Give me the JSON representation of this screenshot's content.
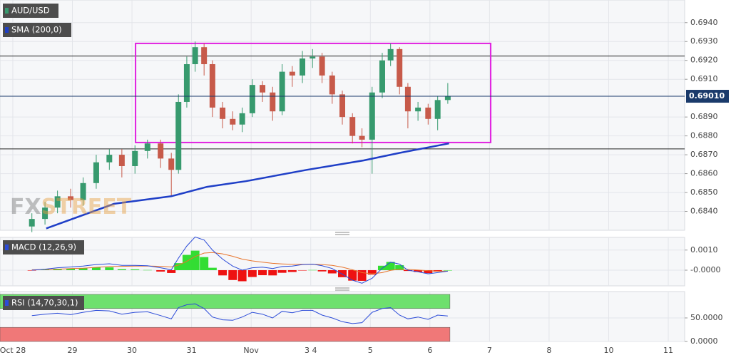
{
  "chart_data": [
    {
      "type": "candlestick",
      "title": "AUD/USD",
      "watermark": [
        "FX",
        "STREET"
      ],
      "x": [
        0.32,
        0.54,
        0.75,
        0.97,
        1.18,
        1.4,
        1.62,
        1.83,
        2.05,
        2.26,
        2.48,
        2.66,
        2.78,
        2.92,
        3.06,
        3.21,
        3.35,
        3.52,
        3.69,
        3.85,
        4.02,
        4.19,
        4.36,
        4.52,
        4.69,
        4.86,
        5.03,
        5.19,
        5.36,
        5.53,
        5.7,
        5.86,
        6.03,
        6.2,
        6.34,
        6.49,
        6.63,
        6.8,
        6.97,
        7.13,
        7.3
      ],
      "open": [
        0.6832,
        0.6836,
        0.6842,
        0.6848,
        0.6846,
        0.6855,
        0.6866,
        0.687,
        0.6864,
        0.6872,
        0.6876,
        0.6868,
        0.6862,
        0.6898,
        0.6918,
        0.6927,
        0.6918,
        0.6895,
        0.6889,
        0.6886,
        0.6892,
        0.6907,
        0.6903,
        0.6893,
        0.6914,
        0.6912,
        0.6921,
        0.6922,
        0.6912,
        0.6902,
        0.689,
        0.688,
        0.6878,
        0.6903,
        0.692,
        0.6926,
        0.6906,
        0.6893,
        0.6895,
        0.6889,
        0.6899
      ],
      "high": [
        0.6839,
        0.6845,
        0.6851,
        0.6852,
        0.6858,
        0.687,
        0.6873,
        0.6873,
        0.6875,
        0.6878,
        0.6878,
        0.6871,
        0.6902,
        0.6922,
        0.693,
        0.6929,
        0.692,
        0.6898,
        0.6893,
        0.6895,
        0.691,
        0.6909,
        0.6906,
        0.6918,
        0.6917,
        0.6925,
        0.6926,
        0.6924,
        0.6914,
        0.6904,
        0.6892,
        0.6884,
        0.6906,
        0.6924,
        0.6929,
        0.6927,
        0.6908,
        0.6898,
        0.6897,
        0.6901,
        0.6908
      ],
      "low": [
        0.6829,
        0.6833,
        0.6839,
        0.6842,
        0.6843,
        0.6852,
        0.6862,
        0.6858,
        0.686,
        0.6868,
        0.6863,
        0.6848,
        0.686,
        0.6895,
        0.6914,
        0.6912,
        0.689,
        0.6884,
        0.6883,
        0.6882,
        0.689,
        0.6898,
        0.6888,
        0.6891,
        0.6906,
        0.6908,
        0.6916,
        0.6908,
        0.6897,
        0.6886,
        0.6876,
        0.6874,
        0.686,
        0.69,
        0.6917,
        0.6902,
        0.6884,
        0.6888,
        0.6886,
        0.6883,
        0.6897
      ],
      "close": [
        0.6836,
        0.6842,
        0.6848,
        0.6846,
        0.6855,
        0.6866,
        0.687,
        0.6864,
        0.6872,
        0.6876,
        0.6868,
        0.6862,
        0.6898,
        0.6918,
        0.6927,
        0.6918,
        0.6895,
        0.6889,
        0.6886,
        0.6892,
        0.6907,
        0.6903,
        0.6893,
        0.6914,
        0.6912,
        0.6921,
        0.6922,
        0.6912,
        0.6902,
        0.689,
        0.688,
        0.6878,
        0.6903,
        0.692,
        0.6926,
        0.6906,
        0.6893,
        0.6895,
        0.6889,
        0.6899,
        0.6901
      ],
      "up_color": "#379a6e",
      "down_color": "#c75a4a",
      "overlays": [
        {
          "name": "SMA (200,0)",
          "color": "#1f3fc7",
          "x": [
            0.56,
            1.7,
            2.66,
            3.26,
            3.91,
            4.93,
            5.89,
            6.49,
            7.32
          ],
          "values": [
            0.6831,
            0.6844,
            0.6848,
            0.6853,
            0.6856,
            0.6862,
            0.6867,
            0.6871,
            0.6876
          ]
        }
      ],
      "hlines": [
        {
          "value": 0.69223,
          "color": "#222222"
        },
        {
          "value": 0.68731,
          "color": "#222222"
        }
      ],
      "last_price": {
        "value": 0.6901,
        "label": "0.69010",
        "color": "#1a3a6b"
      },
      "box": {
        "x": [
          2.06,
          8.02
        ],
        "y": [
          0.68765,
          0.6929
        ],
        "color": "#e020e0"
      },
      "xlim": [
        -0.215,
        11.275
      ],
      "xticks": [
        {
          "value": 0,
          "label": "Oct 28"
        },
        {
          "value": 1,
          "label": "29"
        },
        {
          "value": 2,
          "label": "30"
        },
        {
          "value": 3,
          "label": "31"
        },
        {
          "value": 4,
          "label": "Nov"
        },
        {
          "value": 5,
          "label": "3 4"
        },
        {
          "value": 6,
          "label": "5"
        },
        {
          "value": 7,
          "label": "6"
        },
        {
          "value": 8,
          "label": "7"
        },
        {
          "value": 9,
          "label": "8"
        },
        {
          "value": 10,
          "label": "10"
        },
        {
          "value": 11,
          "label": "11"
        }
      ],
      "ylim": [
        0.683,
        0.6952
      ],
      "yticks": [
        {
          "value": 0.684,
          "label": "0.6840"
        },
        {
          "value": 0.685,
          "label": "0.6850"
        },
        {
          "value": 0.686,
          "label": "0.6860"
        },
        {
          "value": 0.687,
          "label": "0.6870"
        },
        {
          "value": 0.688,
          "label": "0.6880"
        },
        {
          "value": 0.689,
          "label": "0.6890"
        },
        {
          "value": 0.691,
          "label": "0.6910"
        },
        {
          "value": 0.692,
          "label": "0.6920"
        },
        {
          "value": 0.693,
          "label": "0.6930"
        },
        {
          "value": 0.694,
          "label": "0.6940"
        }
      ],
      "grid": true
    },
    {
      "type": "macd",
      "title": "MACD (12,26,9)",
      "x": [
        0.32,
        0.54,
        0.75,
        0.97,
        1.18,
        1.4,
        1.62,
        1.83,
        2.05,
        2.26,
        2.48,
        2.66,
        2.78,
        2.92,
        3.06,
        3.21,
        3.35,
        3.52,
        3.69,
        3.85,
        4.02,
        4.19,
        4.36,
        4.52,
        4.69,
        4.86,
        5.03,
        5.19,
        5.36,
        5.53,
        5.7,
        5.86,
        6.03,
        6.2,
        6.34,
        6.49,
        6.63,
        6.8,
        6.97,
        7.13,
        7.3
      ],
      "macd": [
        0,
        5e-05,
        0.00012,
        0.00016,
        0.0002,
        0.00028,
        0.00032,
        0.00024,
        0.00024,
        0.00022,
        0.00012,
        2e-05,
        0.0006,
        0.0012,
        0.00165,
        0.0015,
        0.001,
        0.00055,
        0.0002,
        0,
        0.00012,
        0.00015,
        8e-05,
        0.00018,
        0.0002,
        0.00028,
        0.0003,
        0.00022,
        8e-05,
        -0.0002,
        -0.0005,
        -0.00065,
        -0.0004,
        0.0001,
        0.0004,
        0.0003,
        0,
        -8e-05,
        -0.00018,
        -0.00012,
        -5e-05
      ],
      "signal": [
        2e-05,
        3e-05,
        5e-05,
        8e-05,
        0.0001,
        0.00014,
        0.00018,
        0.00019,
        0.0002,
        0.00021,
        0.00019,
        0.00016,
        0.00025,
        0.00044,
        0.00068,
        0.00085,
        0.00088,
        0.00081,
        0.00069,
        0.00055,
        0.00046,
        0.0004,
        0.00034,
        0.00031,
        0.00029,
        0.00029,
        0.00029,
        0.00028,
        0.00024,
        0.00015,
        2e-05,
        -0.00012,
        -0.00018,
        -0.00012,
        -1e-05,
        5e-05,
        4e-05,
        1e-05,
        -3e-05,
        -5e-05,
        -5e-05
      ],
      "histogram": [
        -2e-05,
        2e-05,
        7e-05,
        8e-05,
        0.0001,
        0.00014,
        0.00014,
        5e-05,
        4e-05,
        1e-05,
        -7e-05,
        -0.00014,
        0.00035,
        0.00076,
        0.00097,
        0.00065,
        0.00012,
        -0.00026,
        -0.00049,
        -0.00055,
        -0.00034,
        -0.00025,
        -0.00026,
        -0.00013,
        -9e-05,
        -1e-05,
        1e-05,
        -6e-05,
        -0.00016,
        -0.00035,
        -0.00052,
        -0.00053,
        -0.00022,
        0.00022,
        0.00041,
        0.00025,
        -4e-05,
        -9e-05,
        -0.00015,
        -7e-05,
        0
      ],
      "macd_color": "#2b4bd8",
      "signal_color": "#e8742c",
      "hist_up_color": "#33dd33",
      "hist_down_color": "#ee1111",
      "xlim": [
        -0.215,
        11.275
      ],
      "ylim": [
        -0.00078,
        0.00163
      ],
      "yticks": [
        {
          "value": 0.001,
          "label": "0.0010"
        },
        {
          "value": 0,
          "label": "-0.0000"
        }
      ]
    },
    {
      "type": "rsi",
      "title": "RSI (14,70,30,1)",
      "x": [
        0.32,
        0.54,
        0.75,
        0.97,
        1.18,
        1.4,
        1.62,
        1.83,
        2.05,
        2.26,
        2.48,
        2.66,
        2.78,
        2.92,
        3.06,
        3.21,
        3.35,
        3.52,
        3.69,
        3.85,
        4.02,
        4.19,
        4.36,
        4.52,
        4.69,
        4.86,
        5.03,
        5.19,
        5.36,
        5.53,
        5.7,
        5.86,
        6.03,
        6.2,
        6.34,
        6.49,
        6.63,
        6.8,
        6.97,
        7.13,
        7.3
      ],
      "values": [
        55,
        58,
        60,
        57,
        62,
        66,
        65,
        58,
        62,
        63,
        55,
        48,
        72,
        78,
        80,
        70,
        52,
        46,
        45,
        52,
        62,
        58,
        50,
        64,
        61,
        66,
        66,
        56,
        50,
        42,
        38,
        40,
        62,
        70,
        72,
        56,
        48,
        52,
        47,
        56,
        54
      ],
      "color": "#2b4bd8",
      "overbought": [
        70,
        100
      ],
      "oversold": [
        0,
        30
      ],
      "overbought_color": "#6ee06e",
      "oversold_color": "#f07878",
      "xlim": [
        -0.215,
        11.275
      ],
      "ylim": [
        0,
        106
      ],
      "yticks": [
        {
          "value": 50,
          "label": "50.0000"
        },
        {
          "value": 0,
          "label": "0.0000"
        }
      ]
    }
  ]
}
